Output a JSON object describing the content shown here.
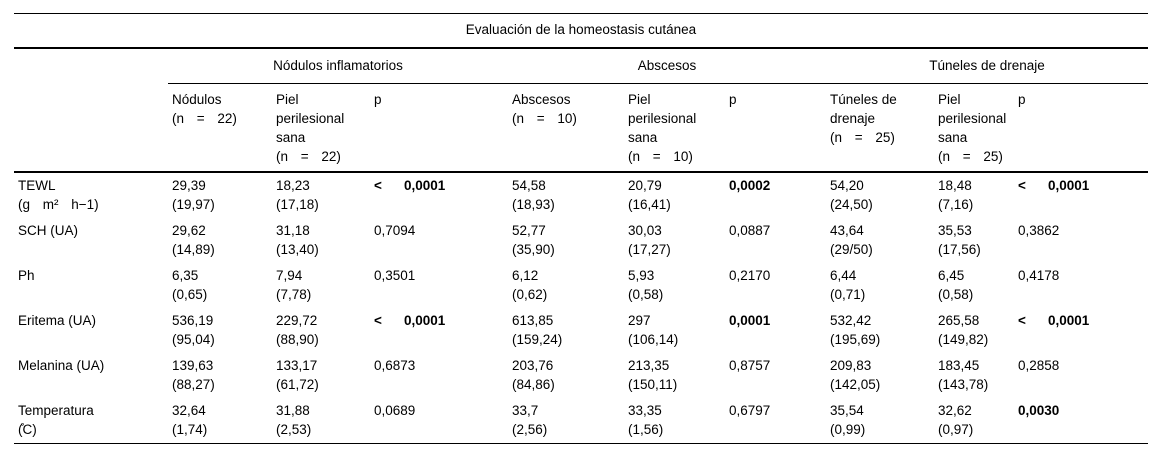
{
  "title": "Evaluación de la homeostasis cutánea",
  "groups": [
    {
      "label": "Nódulos inflamatorios"
    },
    {
      "label": "Abscesos"
    },
    {
      "label": "Túneles de drenaje"
    }
  ],
  "columns": [
    {
      "lines": [
        "Nódulos",
        "(n = 22)"
      ]
    },
    {
      "lines": [
        "Piel",
        "perilesional",
        "sana",
        "(n = 22)"
      ]
    },
    {
      "lines": [
        "p"
      ]
    },
    {
      "lines": [
        "Abscesos",
        "(n = 10)"
      ]
    },
    {
      "lines": [
        "Piel",
        "perilesional",
        "sana",
        "(n = 10)"
      ]
    },
    {
      "lines": [
        "p"
      ]
    },
    {
      "lines": [
        "Túneles de",
        "drenaje",
        "(n = 25)"
      ]
    },
    {
      "lines": [
        "Piel",
        "perilesional",
        "sana",
        "(n = 25)"
      ]
    },
    {
      "lines": [
        "p"
      ]
    }
  ],
  "rows": [
    {
      "label_lines": [
        "TEWL",
        "(g m² h−1)"
      ],
      "cells": [
        {
          "mean": "29,39",
          "sd": "(19,97)"
        },
        {
          "mean": "18,23",
          "sd": "(17,18)"
        },
        {
          "p": "0,0001",
          "prefix": "<",
          "bold": true
        },
        {
          "mean": "54,58",
          "sd": "(18,93)"
        },
        {
          "mean": "20,79",
          "sd": "(16,41)"
        },
        {
          "p": "0,0002",
          "prefix": "",
          "bold": true
        },
        {
          "mean": "54,20",
          "sd": "(24,50)"
        },
        {
          "mean": "18,48",
          "sd": "(7,16)"
        },
        {
          "p": "0,0001",
          "prefix": "<",
          "bold": true
        }
      ]
    },
    {
      "label_lines": [
        "SCH (UA)"
      ],
      "cells": [
        {
          "mean": "29,62",
          "sd": "(14,89)"
        },
        {
          "mean": "31,18",
          "sd": "(13,40)"
        },
        {
          "p": "0,7094",
          "prefix": "",
          "bold": false
        },
        {
          "mean": "52,77",
          "sd": "(35,90)"
        },
        {
          "mean": "30,03",
          "sd": "(17,27)"
        },
        {
          "p": "0,0887",
          "prefix": "",
          "bold": false
        },
        {
          "mean": "43,64",
          "sd": "(29/50)"
        },
        {
          "mean": "35,53",
          "sd": "(17,56)"
        },
        {
          "p": "0,3862",
          "prefix": "",
          "bold": false
        }
      ]
    },
    {
      "label_lines": [
        "Ph"
      ],
      "cells": [
        {
          "mean": "6,35",
          "sd": "(0,65)"
        },
        {
          "mean": "7,94",
          "sd": "(7,78)"
        },
        {
          "p": "0,3501",
          "prefix": "",
          "bold": false
        },
        {
          "mean": "6,12",
          "sd": "(0,62)"
        },
        {
          "mean": "5,93",
          "sd": "(0,58)"
        },
        {
          "p": "0,2170",
          "prefix": "",
          "bold": false
        },
        {
          "mean": "6,44",
          "sd": "(0,71)"
        },
        {
          "mean": "6,45",
          "sd": "(0,58)"
        },
        {
          "p": "0,4178",
          "prefix": "",
          "bold": false
        }
      ]
    },
    {
      "label_lines": [
        "Eritema (UA)"
      ],
      "cells": [
        {
          "mean": "536,19",
          "sd": "(95,04)"
        },
        {
          "mean": "229,72",
          "sd": "(88,90)"
        },
        {
          "p": "0,0001",
          "prefix": "<",
          "bold": true
        },
        {
          "mean": "613,85",
          "sd": "(159,24)"
        },
        {
          "mean": "297",
          "sd": "(106,14)"
        },
        {
          "p": "0,0001",
          "prefix": "",
          "bold": true
        },
        {
          "mean": "532,42",
          "sd": "(195,69)"
        },
        {
          "mean": "265,58",
          "sd": "(149,82)"
        },
        {
          "p": "0,0001",
          "prefix": "<",
          "bold": true
        }
      ]
    },
    {
      "label_lines": [
        "Melanina (UA)"
      ],
      "cells": [
        {
          "mean": "139,63",
          "sd": "(88,27)"
        },
        {
          "mean": "133,17",
          "sd": "(61,72)"
        },
        {
          "p": "0,6873",
          "prefix": "",
          "bold": false
        },
        {
          "mean": "203,76",
          "sd": "(84,86)"
        },
        {
          "mean": "213,35",
          "sd": "(150,11)"
        },
        {
          "p": "0,8757",
          "prefix": "",
          "bold": false
        },
        {
          "mean": "209,83",
          "sd": "(142,05)"
        },
        {
          "mean": "183,45",
          "sd": "(143,78)"
        },
        {
          "p": "0,2858",
          "prefix": "",
          "bold": false
        }
      ]
    },
    {
      "label_lines": [
        "Temperatura",
        "(̊C)"
      ],
      "cells": [
        {
          "mean": "32,64",
          "sd": "(1,74)"
        },
        {
          "mean": "31,88",
          "sd": "(2,53)"
        },
        {
          "p": "0,0689",
          "prefix": "",
          "bold": false
        },
        {
          "mean": "33,7",
          "sd": "(2,56)"
        },
        {
          "mean": "33,35",
          "sd": "(1,56)"
        },
        {
          "p": "0,6797",
          "prefix": "",
          "bold": false
        },
        {
          "mean": "35,54",
          "sd": "(0,99)"
        },
        {
          "mean": "32,62",
          "sd": "(0,97)"
        },
        {
          "p": "0,0030",
          "prefix": "",
          "bold": true
        }
      ]
    }
  ]
}
